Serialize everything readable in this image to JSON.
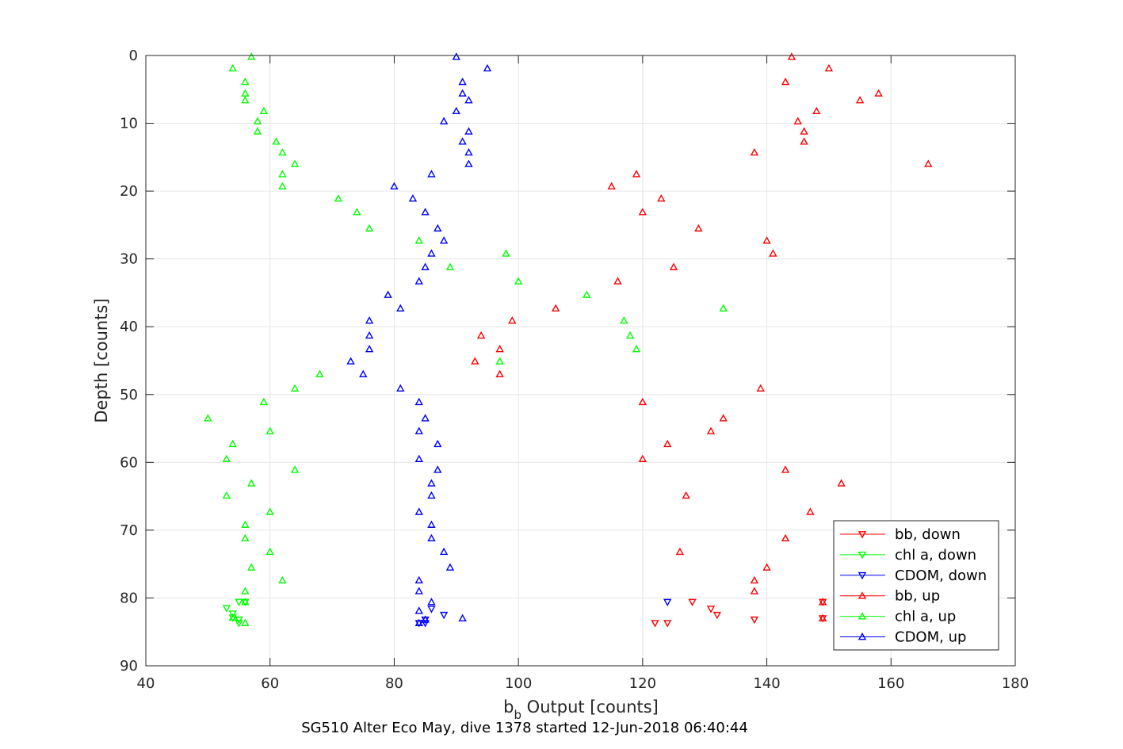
{
  "chart_data": {
    "type": "scatter",
    "title": "",
    "xlabel_main": "b",
    "xlabel_sub": "b",
    "xlabel_rest": " Output [counts]",
    "ylabel": "Depth [counts]",
    "caption": "SG510 Alter Eco May, dive 1378 started 12-Jun-2018 06:40:44",
    "xlim": [
      40,
      180
    ],
    "ylim": [
      0,
      90
    ],
    "y_reversed": true,
    "grid": true,
    "legend_position": "bottom-right",
    "xticks": [
      40,
      60,
      80,
      100,
      120,
      140,
      160,
      180
    ],
    "xtick_labels": [
      "40",
      "60",
      "80",
      "100",
      "120",
      "140",
      "160",
      "180"
    ],
    "yticks": [
      0,
      10,
      20,
      30,
      40,
      50,
      60,
      70,
      80,
      90
    ],
    "ytick_labels": [
      "0",
      "10",
      "20",
      "30",
      "40",
      "50",
      "60",
      "70",
      "80",
      "90"
    ],
    "series": [
      {
        "name": "bb, down",
        "color": "#ff0000",
        "marker": "triangle-down",
        "points": [
          [
            122,
            83.7
          ],
          [
            124,
            83.7
          ],
          [
            128,
            80.6
          ],
          [
            131,
            81.6
          ],
          [
            132,
            82.5
          ],
          [
            138,
            83.2
          ],
          [
            149,
            80.6
          ],
          [
            149,
            83.0
          ]
        ]
      },
      {
        "name": "chl a, down",
        "color": "#00ff00",
        "marker": "triangle-down",
        "points": [
          [
            53,
            81.5
          ],
          [
            54,
            82.3
          ],
          [
            54,
            82.9
          ],
          [
            55,
            83.2
          ],
          [
            55,
            83.7
          ],
          [
            56,
            80.6
          ],
          [
            55,
            80.6
          ]
        ]
      },
      {
        "name": "CDOM, down",
        "color": "#0000ff",
        "marker": "triangle-down",
        "points": [
          [
            85,
            83.2
          ],
          [
            85,
            83.7
          ],
          [
            84,
            83.7
          ],
          [
            86,
            81.6
          ],
          [
            88,
            82.5
          ],
          [
            124,
            80.6
          ]
        ]
      },
      {
        "name": "bb, up",
        "color": "#ff0000",
        "marker": "triangle-up",
        "points": [
          [
            144,
            0.2
          ],
          [
            150,
            1.9
          ],
          [
            143,
            3.9
          ],
          [
            158,
            5.6
          ],
          [
            155,
            6.6
          ],
          [
            148,
            8.2
          ],
          [
            145,
            9.7
          ],
          [
            146,
            11.2
          ],
          [
            146,
            12.7
          ],
          [
            138,
            14.3
          ],
          [
            166,
            16.0
          ],
          [
            119,
            17.5
          ],
          [
            115,
            19.3
          ],
          [
            123,
            21.1
          ],
          [
            120,
            23.1
          ],
          [
            129,
            25.5
          ],
          [
            140,
            27.3
          ],
          [
            141,
            29.2
          ],
          [
            125,
            31.2
          ],
          [
            116,
            33.3
          ],
          [
            106,
            37.3
          ],
          [
            99,
            39.1
          ],
          [
            94,
            41.3
          ],
          [
            97,
            43.3
          ],
          [
            93,
            45.1
          ],
          [
            97,
            47.0
          ],
          [
            139,
            49.1
          ],
          [
            120,
            51.1
          ],
          [
            133,
            53.5
          ],
          [
            131,
            55.4
          ],
          [
            124,
            57.3
          ],
          [
            120,
            59.5
          ],
          [
            143,
            61.1
          ],
          [
            152,
            63.1
          ],
          [
            127,
            64.9
          ],
          [
            147,
            67.3
          ],
          [
            143,
            71.2
          ],
          [
            126,
            73.2
          ],
          [
            140,
            75.5
          ],
          [
            138,
            77.4
          ],
          [
            138,
            79.0
          ],
          [
            149,
            80.6
          ],
          [
            149,
            83.0
          ]
        ]
      },
      {
        "name": "chl a, up",
        "color": "#00ff00",
        "marker": "triangle-up",
        "points": [
          [
            57,
            0.2
          ],
          [
            54,
            1.9
          ],
          [
            56,
            3.9
          ],
          [
            56,
            5.6
          ],
          [
            56,
            6.6
          ],
          [
            59,
            8.2
          ],
          [
            58,
            9.7
          ],
          [
            58,
            11.2
          ],
          [
            61,
            12.7
          ],
          [
            62,
            14.3
          ],
          [
            64,
            16.0
          ],
          [
            62,
            17.5
          ],
          [
            62,
            19.3
          ],
          [
            71,
            21.1
          ],
          [
            74,
            23.1
          ],
          [
            76,
            25.5
          ],
          [
            84,
            27.3
          ],
          [
            98,
            29.2
          ],
          [
            89,
            31.2
          ],
          [
            100,
            33.3
          ],
          [
            111,
            35.3
          ],
          [
            133,
            37.3
          ],
          [
            117,
            39.1
          ],
          [
            118,
            41.3
          ],
          [
            119,
            43.3
          ],
          [
            97,
            45.1
          ],
          [
            68,
            47.0
          ],
          [
            64,
            49.1
          ],
          [
            59,
            51.1
          ],
          [
            50,
            53.5
          ],
          [
            60,
            55.4
          ],
          [
            54,
            57.3
          ],
          [
            53,
            59.5
          ],
          [
            64,
            61.1
          ],
          [
            57,
            63.1
          ],
          [
            53,
            64.9
          ],
          [
            60,
            67.3
          ],
          [
            56,
            69.2
          ],
          [
            56,
            71.2
          ],
          [
            60,
            73.2
          ],
          [
            57,
            75.5
          ],
          [
            62,
            77.4
          ],
          [
            56,
            79.0
          ],
          [
            56,
            80.6
          ],
          [
            54,
            82.9
          ],
          [
            56,
            83.7
          ]
        ]
      },
      {
        "name": "CDOM, up",
        "color": "#0000ff",
        "marker": "triangle-up",
        "points": [
          [
            90,
            0.2
          ],
          [
            95,
            1.9
          ],
          [
            91,
            3.9
          ],
          [
            91,
            5.6
          ],
          [
            92,
            6.6
          ],
          [
            90,
            8.2
          ],
          [
            88,
            9.7
          ],
          [
            92,
            11.2
          ],
          [
            91,
            12.7
          ],
          [
            92,
            14.3
          ],
          [
            92,
            16.0
          ],
          [
            86,
            17.5
          ],
          [
            80,
            19.3
          ],
          [
            83,
            21.1
          ],
          [
            85,
            23.1
          ],
          [
            87,
            25.5
          ],
          [
            88,
            27.3
          ],
          [
            86,
            29.2
          ],
          [
            85,
            31.2
          ],
          [
            84,
            33.3
          ],
          [
            79,
            35.3
          ],
          [
            81,
            37.3
          ],
          [
            76,
            39.1
          ],
          [
            76,
            41.3
          ],
          [
            76,
            43.3
          ],
          [
            73,
            45.1
          ],
          [
            75,
            47.0
          ],
          [
            81,
            49.1
          ],
          [
            84,
            51.1
          ],
          [
            85,
            53.5
          ],
          [
            84,
            55.4
          ],
          [
            87,
            57.3
          ],
          [
            84,
            59.5
          ],
          [
            87,
            61.1
          ],
          [
            86,
            63.1
          ],
          [
            86,
            64.9
          ],
          [
            84,
            67.3
          ],
          [
            86,
            69.2
          ],
          [
            86,
            71.2
          ],
          [
            88,
            73.2
          ],
          [
            89,
            75.5
          ],
          [
            84,
            77.4
          ],
          [
            84,
            79.0
          ],
          [
            86,
            80.6
          ],
          [
            84,
            81.9
          ],
          [
            91,
            83.0
          ],
          [
            84,
            83.7
          ],
          [
            85,
            83.2
          ]
        ]
      }
    ]
  }
}
